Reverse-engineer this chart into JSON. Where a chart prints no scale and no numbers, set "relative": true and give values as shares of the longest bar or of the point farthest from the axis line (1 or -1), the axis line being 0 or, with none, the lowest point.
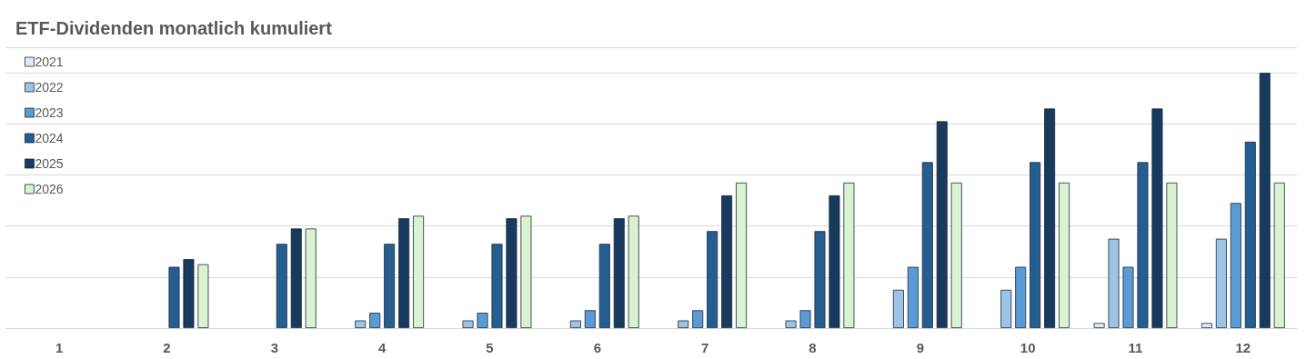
{
  "chart_data": {
    "type": "bar",
    "title": "ETF-Dividenden monatlich kumuliert",
    "relative": true,
    "grid": "y",
    "legend": "top left",
    "categories": [
      "1",
      "2",
      "3",
      "4",
      "5",
      "6",
      "7",
      "8",
      "9",
      "10",
      "11",
      "12"
    ],
    "series": [
      {
        "name": "2021",
        "color": "#deebf7",
        "values": [
          null,
          null,
          null,
          null,
          null,
          null,
          null,
          null,
          null,
          null,
          0.02,
          0.02
        ]
      },
      {
        "name": "2022",
        "color": "#9dc3e6",
        "values": [
          null,
          null,
          null,
          0.03,
          0.03,
          0.03,
          0.03,
          0.03,
          0.15,
          0.15,
          0.35,
          0.35
        ]
      },
      {
        "name": "2023",
        "color": "#5b9bd5",
        "values": [
          null,
          null,
          null,
          0.06,
          0.06,
          0.07,
          0.07,
          0.07,
          0.24,
          0.24,
          0.24,
          0.49
        ]
      },
      {
        "name": "2024",
        "color": "#255e91",
        "values": [
          null,
          0.24,
          0.33,
          0.33,
          0.33,
          0.33,
          0.38,
          0.38,
          0.65,
          0.65,
          0.65,
          0.73
        ]
      },
      {
        "name": "2025",
        "color": "#173a5e",
        "values": [
          null,
          0.27,
          0.39,
          0.43,
          0.43,
          0.43,
          0.52,
          0.52,
          0.81,
          0.86,
          0.86,
          1
        ]
      },
      {
        "name": "2026",
        "color": "#d9f2d0",
        "values": [
          null,
          0.25,
          0.39,
          0.44,
          0.44,
          0.44,
          0.57,
          0.57,
          0.57,
          0.57,
          0.57,
          0.57
        ]
      }
    ]
  }
}
